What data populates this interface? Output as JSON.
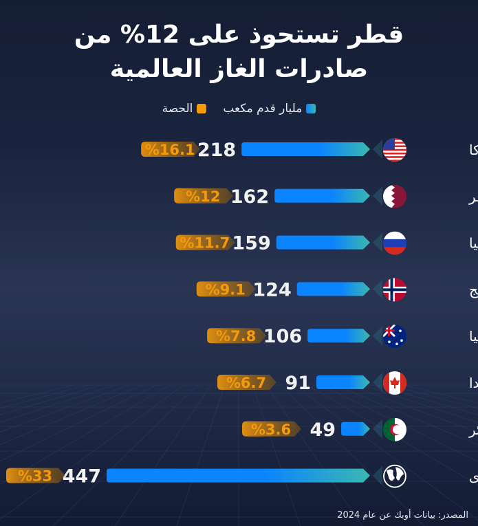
{
  "title_line1": "قطر تستحوذ على 12% من",
  "title_line2": "صادرات الغاز العالمية",
  "legend": [
    {
      "label": "مليار قدم مكعب",
      "color": "#1e8ff0"
    },
    {
      "label": "الحصة",
      "color": "#f59a0a"
    }
  ],
  "source": "المصدر: بيانات أوبك عن عام 2024",
  "chart_data": {
    "type": "bar",
    "orientation": "horizontal",
    "unit": "مليار قدم مكعب",
    "categories": [
      "أميركا",
      "قطر",
      "روسيا",
      "النرويج",
      "أستراليا",
      "كندا",
      "الجزائر",
      "أخرى"
    ],
    "icons": [
      "us-flag",
      "qatar-flag",
      "russia-flag",
      "norway-flag",
      "australia-flag",
      "canada-flag",
      "algeria-flag",
      "globe"
    ],
    "values": [
      218,
      162,
      159,
      124,
      106,
      91,
      49,
      447
    ],
    "shares": [
      "%16.1",
      "%12",
      "%11.7",
      "%9.1",
      "%7.8",
      "%6.7",
      "%3.6",
      "%33"
    ],
    "bar_gradient": [
      "#0a84ff",
      "#3bb8b0"
    ],
    "share_color": "#f59a0a"
  }
}
